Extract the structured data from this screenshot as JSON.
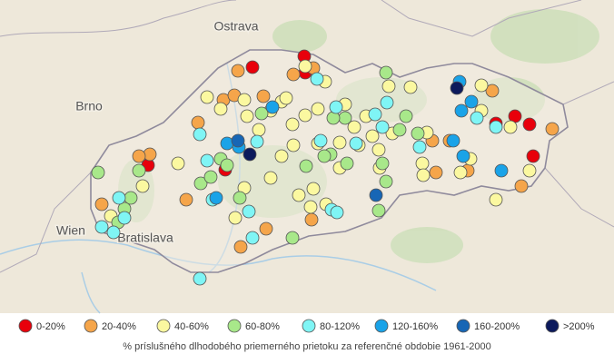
{
  "map": {
    "places": [
      "Ostrava",
      "Brno",
      "Wien",
      "Bratislava"
    ],
    "legend": [
      {
        "label": "0-20%",
        "color": "#e8000b"
      },
      {
        "label": "20-40%",
        "color": "#f5a54a"
      },
      {
        "label": "40-60%",
        "color": "#fbf8a0"
      },
      {
        "label": "60-80%",
        "color": "#a8e88a"
      },
      {
        "label": "80-120%",
        "color": "#7ff5f5"
      },
      {
        "label": "120-160%",
        "color": "#1aa3e8"
      },
      {
        "label": "160-200%",
        "color": "#1766b5"
      },
      {
        "label": ">200%",
        "color": "#0c1a5c"
      }
    ],
    "caption": "% príslušného dlhodobého priemerného prietoku za referenčné obdobie 1961-2000"
  }
}
